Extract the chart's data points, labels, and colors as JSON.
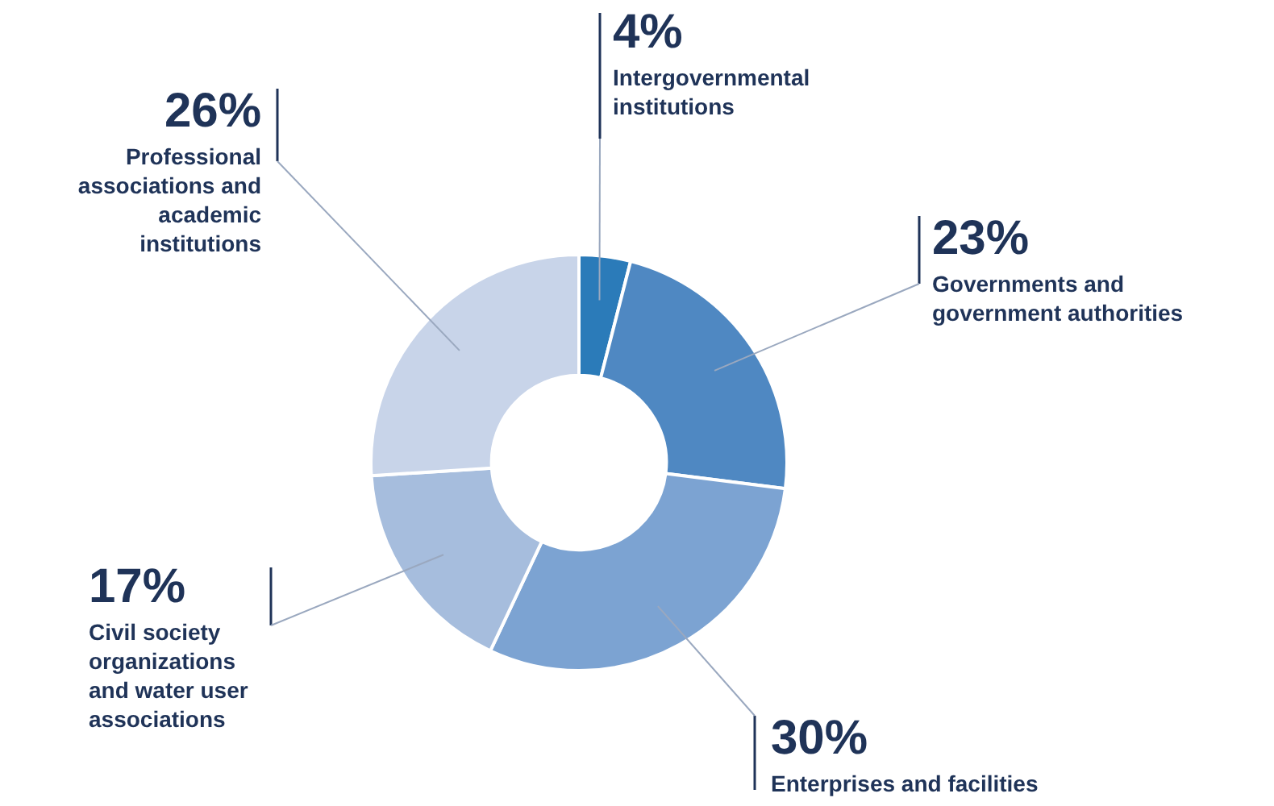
{
  "chart_data": {
    "type": "donut",
    "categories": [
      "Intergovernmental institutions",
      "Governments and government authorities",
      "Enterprises and facilities",
      "Civil society organizations and water user associations",
      "Professional associations and academic institutions"
    ],
    "values": [
      4,
      23,
      30,
      17,
      26
    ],
    "value_labels": [
      "4%",
      "23%",
      "30%",
      "17%",
      "26%"
    ],
    "colors": [
      "#2b7bb9",
      "#4f88c2",
      "#7ca3d2",
      "#a6bddd",
      "#c8d4e9"
    ],
    "legend": false
  }
}
